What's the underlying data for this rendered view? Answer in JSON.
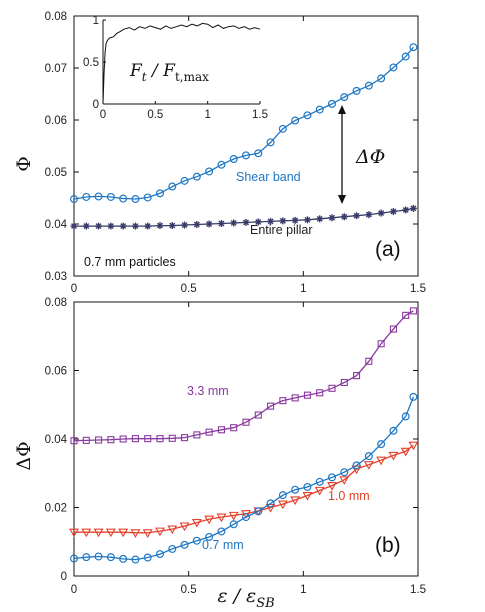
{
  "chart_data": [
    {
      "panel": "a",
      "type": "line",
      "panel_label": "(a)",
      "ylabel": "Φ",
      "xlim": [
        0,
        1.5
      ],
      "ylim": [
        0.03,
        0.08
      ],
      "xticks": [
        "0",
        "0.5",
        "1",
        "1.5"
      ],
      "yticks": [
        "0.03",
        "0.04",
        "0.05",
        "0.06",
        "0.07",
        "0.08"
      ],
      "annotation_particles": "0.7 mm particles",
      "annotation_delta": "ΔΦ",
      "series": [
        {
          "name": "Shear band",
          "color": "#1f77c4",
          "marker": "circle",
          "x": [
            0,
            0.0536,
            0.1071,
            0.1607,
            0.2143,
            0.2679,
            0.3214,
            0.375,
            0.4286,
            0.4821,
            0.5357,
            0.5893,
            0.6429,
            0.6964,
            0.75,
            0.8036,
            0.8571,
            0.9107,
            0.9643,
            1.0179,
            1.0714,
            1.125,
            1.1786,
            1.2321,
            1.2857,
            1.3393,
            1.3929,
            1.4464,
            1.48
          ],
          "y": [
            0.0448,
            0.0452,
            0.0453,
            0.0452,
            0.0449,
            0.0448,
            0.0451,
            0.0459,
            0.0472,
            0.0483,
            0.0491,
            0.0501,
            0.0514,
            0.0525,
            0.0532,
            0.0536,
            0.0557,
            0.0583,
            0.0599,
            0.0609,
            0.062,
            0.0631,
            0.0644,
            0.0656,
            0.0666,
            0.068,
            0.0701,
            0.0722,
            0.074
          ]
        },
        {
          "name": "Entire pillar",
          "color": "#3a3a6a",
          "marker": "star",
          "x": [
            0,
            0.0536,
            0.1071,
            0.1607,
            0.2143,
            0.2679,
            0.3214,
            0.375,
            0.4286,
            0.4821,
            0.5357,
            0.5893,
            0.6429,
            0.6964,
            0.75,
            0.8036,
            0.8571,
            0.9107,
            0.9643,
            1.0179,
            1.0714,
            1.125,
            1.1786,
            1.2321,
            1.2857,
            1.3393,
            1.3929,
            1.4464,
            1.48
          ],
          "y": [
            0.0396,
            0.0396,
            0.0396,
            0.0396,
            0.0396,
            0.0396,
            0.0396,
            0.0397,
            0.0397,
            0.0398,
            0.0399,
            0.04,
            0.0401,
            0.0402,
            0.0403,
            0.0404,
            0.0405,
            0.0406,
            0.0407,
            0.0408,
            0.041,
            0.0412,
            0.0414,
            0.0416,
            0.0418,
            0.0421,
            0.0424,
            0.0427,
            0.043
          ]
        }
      ],
      "inset": {
        "type": "line",
        "xlim": [
          0,
          1.5
        ],
        "ylim": [
          0,
          1
        ],
        "xticks": [
          "0",
          "0.5",
          "1",
          "1.5"
        ],
        "yticks": [
          "0",
          "0.5",
          "1"
        ],
        "label": "F_t / F_t,max",
        "label_main": "F",
        "label_sub1": "t",
        "label_mid": " / F",
        "label_sub2": "t,max",
        "color": "#111111",
        "x": [
          0,
          0.01,
          0.02,
          0.03,
          0.04,
          0.05,
          0.07,
          0.1,
          0.13,
          0.16,
          0.2,
          0.25,
          0.3,
          0.35,
          0.4,
          0.45,
          0.5,
          0.55,
          0.6,
          0.65,
          0.7,
          0.75,
          0.8,
          0.85,
          0.9,
          0.95,
          1.0,
          1.05,
          1.1,
          1.15,
          1.2,
          1.25,
          1.3,
          1.35,
          1.4,
          1.45,
          1.5
        ],
        "y": [
          0,
          0.35,
          0.62,
          0.72,
          0.75,
          0.77,
          0.79,
          0.8,
          0.84,
          0.86,
          0.89,
          0.91,
          0.88,
          0.92,
          0.9,
          0.93,
          0.91,
          0.89,
          0.93,
          0.9,
          0.92,
          0.94,
          0.92,
          0.95,
          0.93,
          0.96,
          0.95,
          0.91,
          0.94,
          0.9,
          0.92,
          0.93,
          0.9,
          0.92,
          0.89,
          0.91,
          0.89
        ]
      }
    },
    {
      "panel": "b",
      "type": "line",
      "panel_label": "(b)",
      "ylabel": "ΔΦ",
      "xlabel_main": "ε / ε",
      "xlabel_sub": "SB",
      "xlim": [
        0,
        1.5
      ],
      "ylim": [
        0,
        0.08
      ],
      "xticks": [
        "0",
        "0.5",
        "1",
        "1.5"
      ],
      "yticks": [
        "0",
        "0.02",
        "0.04",
        "0.06",
        "0.08"
      ],
      "series": [
        {
          "name": "3.3 mm",
          "color": "#8a3aa0",
          "marker": "square",
          "x": [
            0,
            0.0536,
            0.1071,
            0.1607,
            0.2143,
            0.2679,
            0.3214,
            0.375,
            0.4286,
            0.4821,
            0.5357,
            0.5893,
            0.6429,
            0.6964,
            0.75,
            0.8036,
            0.8571,
            0.9107,
            0.9643,
            1.0179,
            1.0714,
            1.125,
            1.1786,
            1.2321,
            1.2857,
            1.3393,
            1.3929,
            1.4464,
            1.48
          ],
          "y": [
            0.0395,
            0.0396,
            0.0397,
            0.0398,
            0.04,
            0.0401,
            0.0401,
            0.0401,
            0.0402,
            0.0404,
            0.0412,
            0.042,
            0.0427,
            0.0433,
            0.0449,
            0.047,
            0.0496,
            0.0512,
            0.052,
            0.0528,
            0.0535,
            0.0548,
            0.0565,
            0.0585,
            0.0627,
            0.0678,
            0.0721,
            0.0761,
            0.0774
          ]
        },
        {
          "name": "1.0 mm",
          "color": "#e5402a",
          "marker": "triangle-down",
          "x": [
            0,
            0.0536,
            0.1071,
            0.1607,
            0.2143,
            0.2679,
            0.3214,
            0.375,
            0.4286,
            0.4821,
            0.5357,
            0.5893,
            0.6429,
            0.6964,
            0.75,
            0.8036,
            0.8571,
            0.9107,
            0.9643,
            1.0179,
            1.0714,
            1.125,
            1.1786,
            1.2321,
            1.2857,
            1.3393,
            1.3929,
            1.4464,
            1.48
          ],
          "y": [
            0.0128,
            0.0128,
            0.0128,
            0.0128,
            0.0128,
            0.0126,
            0.0126,
            0.0131,
            0.0137,
            0.0146,
            0.0156,
            0.0166,
            0.0172,
            0.0177,
            0.0182,
            0.019,
            0.02,
            0.021,
            0.0222,
            0.0235,
            0.025,
            0.0264,
            0.0281,
            0.0312,
            0.0325,
            0.0338,
            0.0352,
            0.0364,
            0.0382
          ]
        },
        {
          "name": "0.7 mm",
          "color": "#1f77c4",
          "marker": "circle",
          "x": [
            0,
            0.0536,
            0.1071,
            0.1607,
            0.2143,
            0.2679,
            0.3214,
            0.375,
            0.4286,
            0.4821,
            0.5357,
            0.5893,
            0.6429,
            0.6964,
            0.75,
            0.8036,
            0.8571,
            0.9107,
            0.9643,
            1.0179,
            1.0714,
            1.125,
            1.1786,
            1.2321,
            1.2857,
            1.3393,
            1.3929,
            1.4464,
            1.48
          ],
          "y": [
            0.0051,
            0.0055,
            0.0057,
            0.0055,
            0.005,
            0.0048,
            0.0054,
            0.0064,
            0.0079,
            0.0091,
            0.0103,
            0.0114,
            0.013,
            0.0151,
            0.0172,
            0.0189,
            0.0212,
            0.0236,
            0.0252,
            0.026,
            0.0275,
            0.0288,
            0.0303,
            0.0323,
            0.035,
            0.0385,
            0.0424,
            0.0466,
            0.0523
          ]
        }
      ]
    }
  ]
}
